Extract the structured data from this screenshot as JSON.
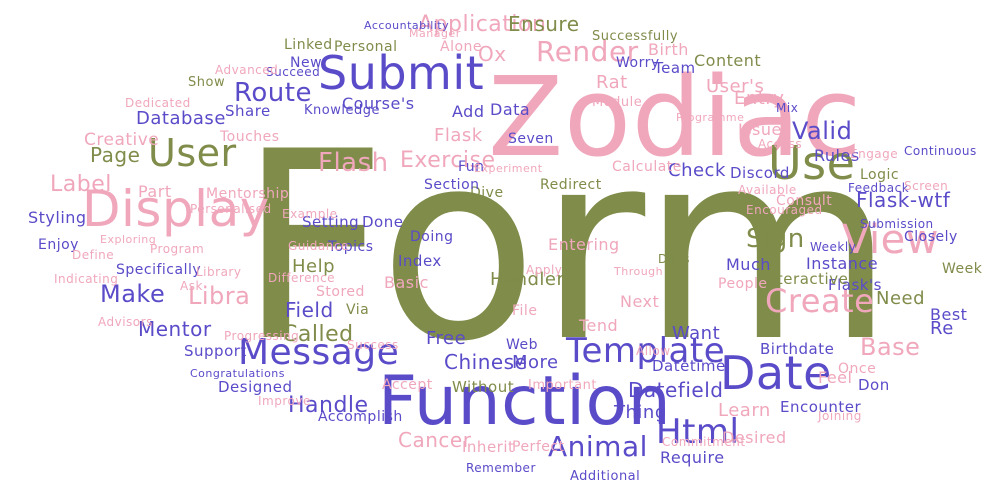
{
  "colors": {
    "olive": "#7f8c4a",
    "pink": "#f0a7bc",
    "purple": "#5a4bc9",
    "background": "#ffffff"
  },
  "words": [
    {
      "text": "Form",
      "color": "olive"
    },
    {
      "text": "Zodiac",
      "color": "pink"
    },
    {
      "text": "Function",
      "color": "purple"
    },
    {
      "text": "Submit",
      "color": "purple"
    },
    {
      "text": "Display",
      "color": "pink"
    },
    {
      "text": "Date",
      "color": "purple"
    },
    {
      "text": "Use",
      "color": "olive"
    },
    {
      "text": "View",
      "color": "pink"
    },
    {
      "text": "User",
      "color": "olive"
    },
    {
      "text": "Message",
      "color": "purple"
    },
    {
      "text": "Template",
      "color": "purple"
    },
    {
      "text": "Html",
      "color": "purple"
    },
    {
      "text": "Create",
      "color": "pink"
    },
    {
      "text": "Render",
      "color": "pink"
    },
    {
      "text": "Animal",
      "color": "purple"
    },
    {
      "text": "Application",
      "color": "pink"
    },
    {
      "text": "Route",
      "color": "purple"
    },
    {
      "text": "Valid",
      "color": "purple"
    },
    {
      "text": "Flash",
      "color": "pink"
    },
    {
      "text": "Sign",
      "color": "olive"
    },
    {
      "text": "Base",
      "color": "pink"
    },
    {
      "text": "Make",
      "color": "purple"
    },
    {
      "text": "Label",
      "color": "pink"
    },
    {
      "text": "Libra",
      "color": "pink"
    },
    {
      "text": "Flask-wtf",
      "color": "purple"
    },
    {
      "text": "Datefield",
      "color": "purple"
    },
    {
      "text": "Chinese",
      "color": "purple"
    },
    {
      "text": "Handle",
      "color": "purple"
    },
    {
      "text": "Called",
      "color": "olive"
    },
    {
      "text": "Exercise",
      "color": "pink"
    },
    {
      "text": "Mentor",
      "color": "purple"
    },
    {
      "text": "Cancer",
      "color": "pink"
    },
    {
      "text": "Page",
      "color": "olive"
    },
    {
      "text": "Database",
      "color": "purple"
    },
    {
      "text": "Rules",
      "color": "purple"
    },
    {
      "text": "Need",
      "color": "olive"
    },
    {
      "text": "Feel",
      "color": "pink"
    },
    {
      "text": "Learn",
      "color": "pink"
    },
    {
      "text": "Check",
      "color": "purple"
    },
    {
      "text": "Course's",
      "color": "purple"
    },
    {
      "text": "Field",
      "color": "purple"
    },
    {
      "text": "Help",
      "color": "olive"
    },
    {
      "text": "Ensure",
      "color": "olive"
    },
    {
      "text": "Ox",
      "color": "pink"
    },
    {
      "text": "Rat",
      "color": "pink"
    },
    {
      "text": "Creative",
      "color": "pink"
    },
    {
      "text": "Thing",
      "color": "purple"
    },
    {
      "text": "Free",
      "color": "purple"
    },
    {
      "text": "More",
      "color": "purple"
    },
    {
      "text": "Entry",
      "color": "pink"
    },
    {
      "text": "User's",
      "color": "pink"
    },
    {
      "text": "Styling",
      "color": "purple"
    },
    {
      "text": "Part",
      "color": "pink"
    },
    {
      "text": "Flask",
      "color": "pink"
    },
    {
      "text": "Data",
      "color": "purple"
    },
    {
      "text": "Add",
      "color": "purple"
    },
    {
      "text": "Content",
      "color": "olive"
    },
    {
      "text": "Birth",
      "color": "pink"
    },
    {
      "text": "Team",
      "color": "purple"
    },
    {
      "text": "Worry",
      "color": "purple"
    },
    {
      "text": "Alone",
      "color": "pink"
    },
    {
      "text": "Linked",
      "color": "olive"
    },
    {
      "text": "Personal",
      "color": "olive"
    },
    {
      "text": "New",
      "color": "purple"
    },
    {
      "text": "Succeed",
      "color": "purple"
    },
    {
      "text": "Advanced",
      "color": "pink"
    },
    {
      "text": "Show",
      "color": "olive"
    },
    {
      "text": "Share",
      "color": "purple"
    },
    {
      "text": "Dedicated",
      "color": "pink"
    },
    {
      "text": "Touches",
      "color": "pink"
    },
    {
      "text": "Issues",
      "color": "pink"
    },
    {
      "text": "Access",
      "color": "pink"
    },
    {
      "text": "Discord",
      "color": "purple"
    },
    {
      "text": "Logic",
      "color": "olive"
    },
    {
      "text": "Feedback",
      "color": "purple"
    },
    {
      "text": "Screen",
      "color": "pink"
    },
    {
      "text": "Submission",
      "color": "purple"
    },
    {
      "text": "Closely",
      "color": "purple"
    },
    {
      "text": "Weekly",
      "color": "purple"
    },
    {
      "text": "Week",
      "color": "olive"
    },
    {
      "text": "Best",
      "color": "purple"
    },
    {
      "text": "Re",
      "color": "purple"
    },
    {
      "text": "Flask's",
      "color": "purple"
    },
    {
      "text": "Instance",
      "color": "purple"
    },
    {
      "text": "Interactive",
      "color": "olive"
    },
    {
      "text": "People",
      "color": "pink"
    },
    {
      "text": "Much",
      "color": "purple"
    },
    {
      "text": "Days",
      "color": "olive"
    },
    {
      "text": "Want",
      "color": "purple"
    },
    {
      "text": "Datetime",
      "color": "purple"
    },
    {
      "text": "Birthdate",
      "color": "purple"
    },
    {
      "text": "Once",
      "color": "pink"
    },
    {
      "text": "Don",
      "color": "purple"
    },
    {
      "text": "Encounter",
      "color": "purple"
    },
    {
      "text": "Joining",
      "color": "pink"
    },
    {
      "text": "Desired",
      "color": "pink"
    },
    {
      "text": "Require",
      "color": "purple"
    },
    {
      "text": "Commitment",
      "color": "pink"
    },
    {
      "text": "Additional",
      "color": "purple"
    },
    {
      "text": "Remember",
      "color": "purple"
    },
    {
      "text": "Perfect",
      "color": "pink"
    },
    {
      "text": "Inherit",
      "color": "pink"
    },
    {
      "text": "Without",
      "color": "olive"
    },
    {
      "text": "Accept",
      "color": "pink"
    },
    {
      "text": "Accomplish",
      "color": "purple"
    },
    {
      "text": "Designed",
      "color": "purple"
    },
    {
      "text": "Support",
      "color": "purple"
    },
    {
      "text": "Advisors",
      "color": "pink"
    },
    {
      "text": "Indicating",
      "color": "pink"
    },
    {
      "text": "Enjoy",
      "color": "purple"
    },
    {
      "text": "Define",
      "color": "pink"
    },
    {
      "text": "Specifically",
      "color": "purple"
    },
    {
      "text": "Ask",
      "color": "pink"
    },
    {
      "text": "Library",
      "color": "pink"
    },
    {
      "text": "Mentorship",
      "color": "pink"
    },
    {
      "text": "Setting",
      "color": "purple"
    },
    {
      "text": "Done",
      "color": "purple"
    },
    {
      "text": "Topics",
      "color": "purple"
    },
    {
      "text": "Doing",
      "color": "purple"
    },
    {
      "text": "Index",
      "color": "purple"
    },
    {
      "text": "Basic",
      "color": "pink"
    },
    {
      "text": "Stored",
      "color": "pink"
    },
    {
      "text": "Via",
      "color": "olive"
    },
    {
      "text": "Handler",
      "color": "olive"
    },
    {
      "text": "Entering",
      "color": "pink"
    },
    {
      "text": "Tend",
      "color": "pink"
    },
    {
      "text": "Next",
      "color": "pink"
    },
    {
      "text": "Web",
      "color": "purple"
    },
    {
      "text": "Dive",
      "color": "olive"
    },
    {
      "text": "Fun",
      "color": "purple"
    },
    {
      "text": "Section",
      "color": "purple"
    },
    {
      "text": "Redirect",
      "color": "olive"
    },
    {
      "text": "Calculate",
      "color": "pink"
    },
    {
      "text": "Seven",
      "color": "purple"
    },
    {
      "text": "Encouraged",
      "color": "pink"
    },
    {
      "text": "Consult",
      "color": "pink"
    },
    {
      "text": "Available",
      "color": "pink"
    },
    {
      "text": "Module",
      "color": "pink"
    },
    {
      "text": "Successfully",
      "color": "olive"
    },
    {
      "text": "Programme",
      "color": "pink"
    },
    {
      "text": "Difference",
      "color": "pink"
    },
    {
      "text": "Guidance",
      "color": "pink"
    },
    {
      "text": "Experiment",
      "color": "pink"
    },
    {
      "text": "Through",
      "color": "pink"
    },
    {
      "text": "Apply",
      "color": "pink"
    },
    {
      "text": "Allow",
      "color": "pink"
    },
    {
      "text": "File",
      "color": "pink"
    },
    {
      "text": "Important",
      "color": "pink"
    },
    {
      "text": "Success",
      "color": "pink"
    },
    {
      "text": "Congratulations",
      "color": "purple"
    },
    {
      "text": "Program",
      "color": "pink"
    },
    {
      "text": "Example",
      "color": "pink"
    },
    {
      "text": "Personalised",
      "color": "pink"
    },
    {
      "text": "Knowledge",
      "color": "purple"
    },
    {
      "text": "Accountability",
      "color": "purple"
    },
    {
      "text": "Manager",
      "color": "pink"
    },
    {
      "text": "Mix",
      "color": "purple"
    },
    {
      "text": "Continuous",
      "color": "purple"
    },
    {
      "text": "Engage",
      "color": "pink"
    },
    {
      "text": "Improve",
      "color": "pink"
    },
    {
      "text": "Progressing",
      "color": "pink"
    },
    {
      "text": "Exploring",
      "color": "pink"
    }
  ]
}
